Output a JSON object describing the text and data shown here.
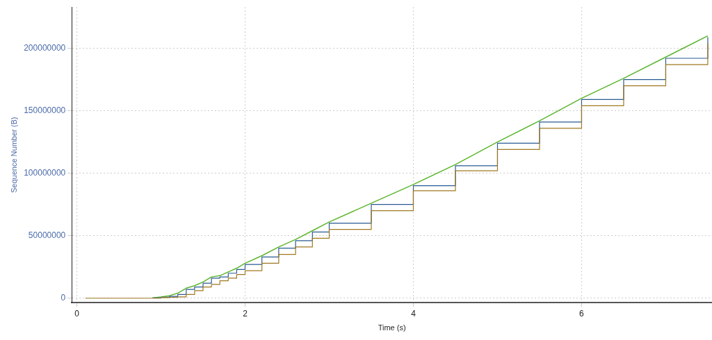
{
  "chart_data": {
    "type": "line",
    "xlabel": "Time (s)",
    "ylabel": "Sequence Number (B)",
    "xlim": [
      -0.06,
      7.55
    ],
    "ylim": [
      -3700000,
      233000000
    ],
    "xticks": [
      0,
      2,
      4,
      6
    ],
    "yticks": [
      0,
      50000000,
      100000000,
      150000000,
      200000000
    ],
    "grid": true,
    "legend": false,
    "marker": "none",
    "x": [
      0.1,
      0.5,
      0.9,
      1.0,
      1.1,
      1.2,
      1.3,
      1.4,
      1.5,
      1.6,
      1.7,
      1.8,
      1.9,
      2.0,
      2.2,
      2.4,
      2.6,
      2.8,
      3.0,
      3.5,
      4.0,
      4.5,
      5.0,
      5.5,
      6.0,
      6.5,
      7.0,
      7.5
    ],
    "series": [
      {
        "color": "#5ab52a",
        "values": [
          null,
          null,
          300000,
          1000000,
          2000000,
          4000000,
          8000000,
          10000000,
          13000000,
          17000000,
          18000000,
          21000000,
          24000000,
          28000000,
          34000000,
          41000000,
          47000000,
          54000000,
          61000000,
          76000000,
          91000000,
          107000000,
          125000000,
          142000000,
          160000000,
          176000000,
          193000000,
          210000000
        ]
      },
      {
        "type": "step",
        "color": "#a07820",
        "values": [
          0,
          0,
          0,
          500000,
          700000,
          1000000,
          3000000,
          6000000,
          9000000,
          11000000,
          14000000,
          16000000,
          19000000,
          22000000,
          28000000,
          35000000,
          41000000,
          48000000,
          55000000,
          70000000,
          86000000,
          102000000,
          119000000,
          136000000,
          154000000,
          170000000,
          187000000,
          204000000
        ]
      },
      {
        "type": "step",
        "color": "#2a5a94",
        "values": [
          null,
          null,
          200000,
          800000,
          1500000,
          3000000,
          7000000,
          9000000,
          12000000,
          16000000,
          17000000,
          20000000,
          23000000,
          27000000,
          33000000,
          40000000,
          46000000,
          53000000,
          60000000,
          75000000,
          90000000,
          106000000,
          124000000,
          141000000,
          159000000,
          175000000,
          192000000,
          209000000
        ]
      }
    ]
  }
}
